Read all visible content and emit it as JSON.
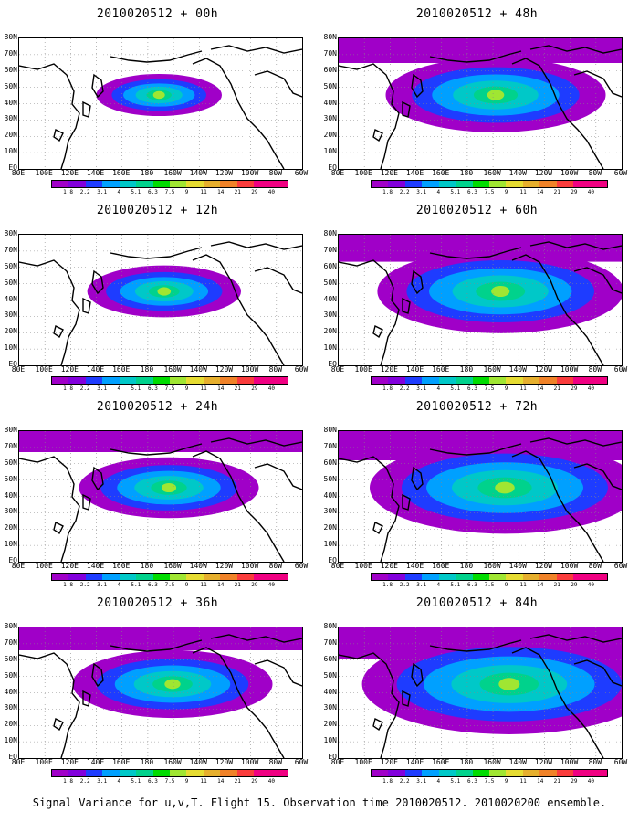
{
  "caption": "Signal Variance for u,v,T. Flight 15. Observation time 2010020512. 2010020200 ensemble.",
  "lat_labels": [
    "80N",
    "70N",
    "60N",
    "50N",
    "40N",
    "30N",
    "20N",
    "10N",
    "EQ"
  ],
  "lon_labels": [
    "80E",
    "100E",
    "120E",
    "140E",
    "160E",
    "180",
    "160W",
    "140W",
    "120W",
    "100W",
    "80W",
    "60W"
  ],
  "colorbar": {
    "labels": [
      "1.8",
      "2.2",
      "3.1",
      "4",
      "5.1",
      "6.3",
      "7.5",
      "9",
      "11",
      "14",
      "21",
      "29",
      "40"
    ],
    "colors": [
      "#a000c8",
      "#8200dc",
      "#1e3cff",
      "#00a0ff",
      "#00c8c8",
      "#00d28c",
      "#00dc00",
      "#a0e632",
      "#e6dc32",
      "#e6af2d",
      "#f08228",
      "#fa3c3c",
      "#f00082"
    ]
  },
  "panels": [
    {
      "title": "2010020512 + 00h",
      "level": 0.08
    },
    {
      "title": "2010020512 + 48h",
      "level": 0.55
    },
    {
      "title": "2010020512 + 12h",
      "level": 0.22
    },
    {
      "title": "2010020512 + 60h",
      "level": 0.68
    },
    {
      "title": "2010020512 + 24h",
      "level": 0.35
    },
    {
      "title": "2010020512 + 72h",
      "level": 0.8
    },
    {
      "title": "2010020512 + 36h",
      "level": 0.45
    },
    {
      "title": "2010020512 + 84h",
      "level": 0.92
    }
  ]
}
